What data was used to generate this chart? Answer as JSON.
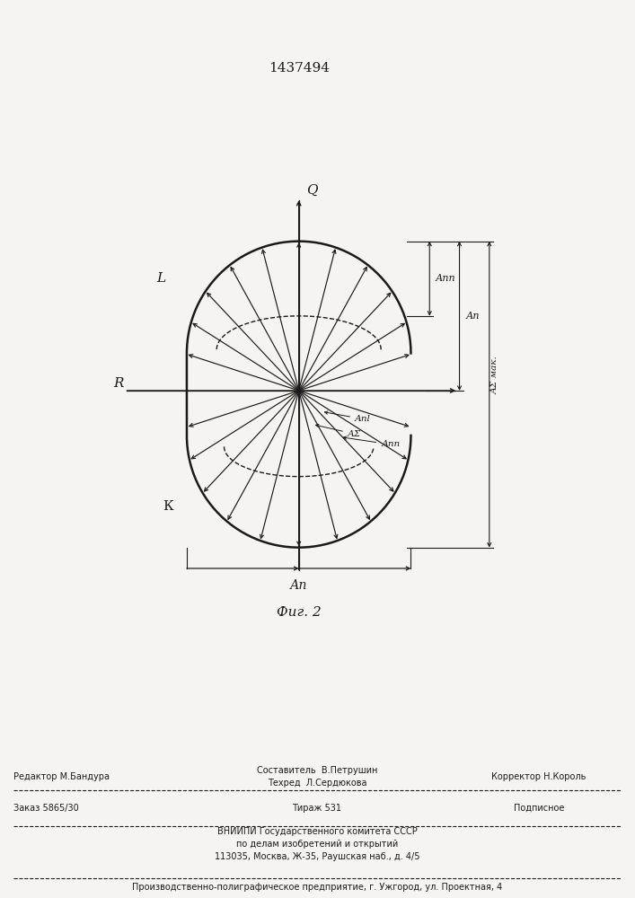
{
  "title": "1437494",
  "fig_label": "Фиг. 2",
  "bg_color": "#f5f4f0",
  "line_color": "#1a1a1a",
  "footer_line1": "Составитель  В.Петрушин",
  "footer_line2": "Техред  Л.Сердюкова",
  "footer_editor": "Редактор М.Бандура",
  "footer_corrector": "Корректор Н.Король",
  "footer_order": "Заказ 5865/30",
  "footer_tirazh": "Тираж 531",
  "footer_podpisnoe": "Подписное",
  "footer_vniiipi": "ВНИИПИ Государственного комитета СССР",
  "footer_po_delam": "по делам изобретений и открытий",
  "footer_address": "113035, Москва, Ж-35, Раушская наб., д. 4/5",
  "footer_proizv": "Производственно-полиграфическое предприятие, г. Ужгород, ул. Проектная, 4"
}
